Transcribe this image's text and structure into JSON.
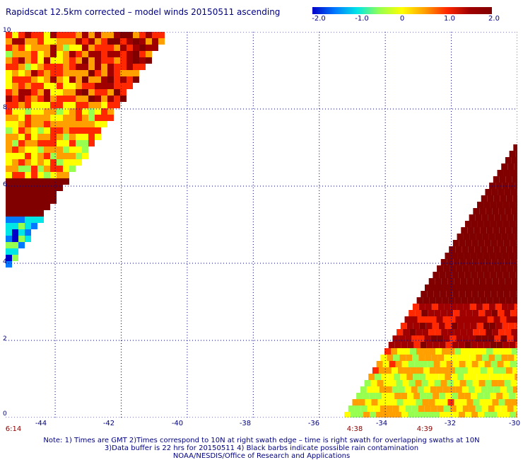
{
  "title": "Rapidscat 12.5km corrected – model winds 20150511 ascending",
  "colorbar": {
    "labels": [
      "-2.0",
      "-1.0",
      "0",
      "1.0",
      "2.0"
    ],
    "min": -2.0,
    "max": 2.0,
    "colors": [
      "#0000c8",
      "#0078ff",
      "#00e6e6",
      "#96ff50",
      "#ffff00",
      "#ffa000",
      "#ff2800",
      "#a00000",
      "#800000"
    ]
  },
  "map": {
    "lon_range": [
      -45.5,
      -30
    ],
    "lat_range": [
      0,
      10
    ],
    "x_ticks": [
      "-44",
      "-42",
      "-40",
      "-38",
      "-36",
      "-34",
      "-32",
      "-30"
    ],
    "y_ticks": [
      "0",
      "2",
      "4",
      "6",
      "8",
      "10"
    ],
    "grid_style": "dotted",
    "grid_color": "#00007f"
  },
  "swath_times": [
    "6:14",
    "4:38",
    "4:39"
  ],
  "notes": [
    "Note: 1) Times are GMT 2)Times correspond to 10N at right swath edge – time is right swath for overlapping swaths at 10N",
    "3)Data buffer is 22 hrs for 20150511 4) Black barbs indicate possible rain contamination",
    "NOAA/NESDIS/Office of Research and Applications"
  ]
}
